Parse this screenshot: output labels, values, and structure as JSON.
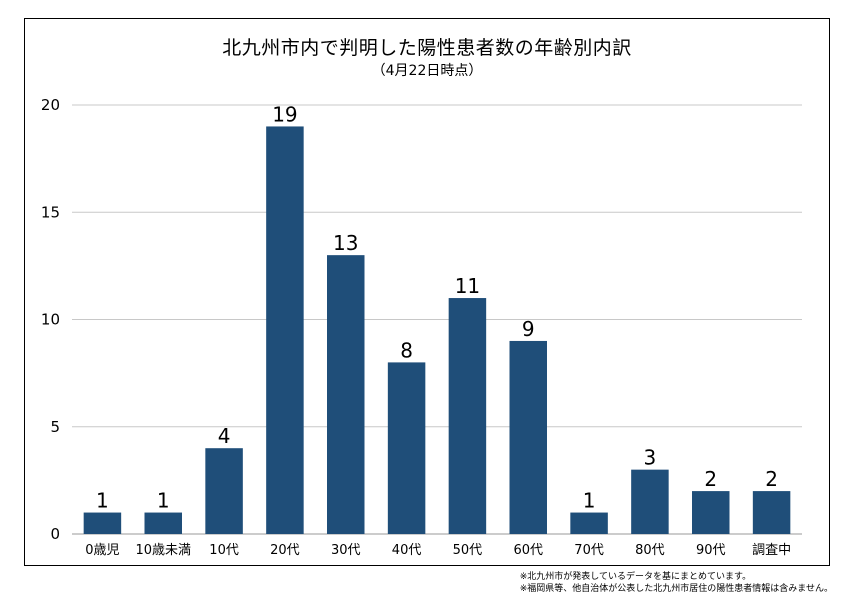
{
  "chart_data": {
    "type": "bar",
    "title": "北九州市内で判明した陽性患者数の年齢別内訳",
    "subtitle": "（4月22日時点）",
    "categories": [
      "0歳児",
      "10歳未満",
      "10代",
      "20代",
      "30代",
      "40代",
      "50代",
      "60代",
      "70代",
      "80代",
      "90代",
      "調査中"
    ],
    "values": [
      1,
      1,
      4,
      19,
      13,
      8,
      11,
      9,
      1,
      3,
      2,
      2
    ],
    "ylim": [
      0,
      20
    ],
    "yticks": [
      0,
      5,
      10,
      15,
      20
    ],
    "xlabel": "",
    "ylabel": "",
    "grid": true,
    "bar_color": "#1f4e79"
  },
  "notes": [
    "※北九州市が発表しているデータを基にまとめています。",
    "※福岡県等、他自治体が公表した北九州市居住の陽性患者情報は含みません。"
  ]
}
